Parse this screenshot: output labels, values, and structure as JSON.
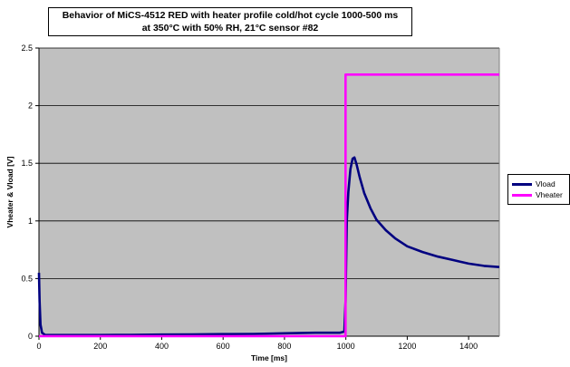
{
  "title": {
    "line1": "Behavior of MiCS-4512 RED with heater profile cold/hot cycle 1000-500 ms",
    "line2": "at 350°C with 50% RH, 21°C sensor #82"
  },
  "chart_data": {
    "type": "line",
    "xlabel": "Time [ms]",
    "ylabel": "Vheater & Vload [V]",
    "xlim": [
      0,
      1500
    ],
    "ylim": [
      0,
      2.5
    ],
    "xticks": [
      0,
      200,
      400,
      600,
      800,
      1000,
      1200,
      1400
    ],
    "yticks": [
      0,
      0.5,
      1,
      1.5,
      2,
      2.5
    ],
    "ytick_labels": [
      "0",
      "0.5",
      "1",
      "1.5",
      "2",
      "2.5"
    ],
    "grid": true,
    "plot_background": "#C0C0C0",
    "legend_position": "right",
    "series": [
      {
        "name": "Vload",
        "color": "#000080",
        "x": [
          0,
          2,
          5,
          10,
          20,
          50,
          100,
          200,
          300,
          400,
          500,
          600,
          700,
          800,
          900,
          980,
          995,
          999,
          1003,
          1008,
          1015,
          1022,
          1028,
          1035,
          1045,
          1060,
          1080,
          1100,
          1130,
          1160,
          1200,
          1250,
          1300,
          1350,
          1400,
          1450,
          1500
        ],
        "y": [
          0.55,
          0.3,
          0.1,
          0.03,
          0.01,
          0.01,
          0.01,
          0.01,
          0.012,
          0.014,
          0.016,
          0.018,
          0.02,
          0.025,
          0.03,
          0.03,
          0.04,
          0.3,
          1.0,
          1.25,
          1.45,
          1.54,
          1.55,
          1.49,
          1.38,
          1.24,
          1.11,
          1.01,
          0.92,
          0.85,
          0.78,
          0.73,
          0.69,
          0.66,
          0.63,
          0.61,
          0.6
        ]
      },
      {
        "name": "Vheater",
        "color": "#FF00FF",
        "x": [
          0,
          999,
          999,
          1500
        ],
        "y": [
          0,
          0,
          2.27,
          2.27
        ]
      }
    ]
  }
}
